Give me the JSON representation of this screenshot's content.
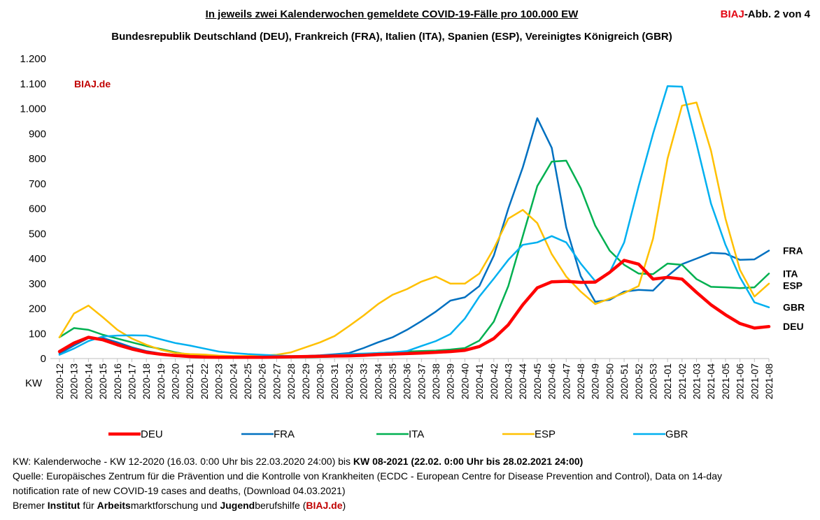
{
  "header": {
    "title": "In jeweils zwei Kalenderwochen gemeldete COVID-19-Fälle pro 100.000 EW",
    "subtitle": "Bundesrepublik Deutschland (DEU), Frankreich (FRA), Italien (ITA), Spanien (ESP), Vereinigtes Königreich (GBR)",
    "corner_brand": "BIAJ",
    "corner_rest": "-Abb. 2 von 4"
  },
  "chart_data": {
    "type": "line",
    "watermark": "BIAJ.de",
    "xlabel": "KW",
    "ylim": [
      0,
      1200
    ],
    "yticks": [
      0,
      100,
      200,
      300,
      400,
      500,
      600,
      700,
      800,
      900,
      1000,
      1100,
      1200
    ],
    "ytick_labels": [
      "0",
      "100",
      "200",
      "300",
      "400",
      "500",
      "600",
      "700",
      "800",
      "900",
      "1.000",
      "1.100",
      "1.200"
    ],
    "categories": [
      "2020-12",
      "2020-13",
      "2020-14",
      "2020-15",
      "2020-16",
      "2020-17",
      "2020-18",
      "2020-19",
      "2020-20",
      "2020-21",
      "2020-22",
      "2020-23",
      "2020-24",
      "2020-25",
      "2020-26",
      "2020-27",
      "2020-28",
      "2020-29",
      "2020-30",
      "2020-31",
      "2020-32",
      "2020-33",
      "2020-34",
      "2020-35",
      "2020-36",
      "2020-37",
      "2020-38",
      "2020-39",
      "2020-40",
      "2020-41",
      "2020-42",
      "2020-43",
      "2020-44",
      "2020-45",
      "2020-46",
      "2020-47",
      "2020-48",
      "2020-49",
      "2020-50",
      "2020-51",
      "2020-52",
      "2020-53",
      "2021-01",
      "2021-02",
      "2021-03",
      "2021-04",
      "2021-05",
      "2021-06",
      "2021-07",
      "2021-08"
    ],
    "series": [
      {
        "name": "DEU",
        "color": "#ff0000",
        "values": [
          28,
          62,
          85,
          75,
          55,
          38,
          25,
          17,
          12,
          8,
          6,
          5,
          5,
          5,
          5,
          6,
          7,
          8,
          9,
          10,
          11,
          13,
          16,
          18,
          20,
          22,
          25,
          28,
          33,
          48,
          80,
          135,
          215,
          283,
          307,
          309,
          305,
          306,
          345,
          393,
          378,
          318,
          325,
          318,
          265,
          215,
          175,
          140,
          122,
          128
        ]
      },
      {
        "name": "FRA",
        "color": "#0070c0",
        "values": [
          20,
          52,
          82,
          82,
          65,
          45,
          30,
          20,
          14,
          10,
          7,
          5,
          5,
          5,
          5,
          6,
          8,
          10,
          13,
          17,
          22,
          42,
          65,
          85,
          115,
          150,
          188,
          232,
          245,
          290,
          412,
          600,
          765,
          962,
          843,
          525,
          330,
          227,
          235,
          268,
          275,
          272,
          330,
          378,
          400,
          423,
          420,
          395,
          397,
          432
        ]
      },
      {
        "name": "ITA",
        "color": "#00b050",
        "values": [
          85,
          122,
          115,
          95,
          80,
          65,
          50,
          38,
          25,
          15,
          10,
          8,
          6,
          5,
          5,
          5,
          5,
          5,
          6,
          8,
          12,
          18,
          22,
          25,
          28,
          30,
          32,
          36,
          42,
          72,
          148,
          290,
          490,
          690,
          788,
          792,
          682,
          532,
          432,
          375,
          340,
          338,
          380,
          375,
          318,
          287,
          285,
          282,
          285,
          340
        ]
      },
      {
        "name": "ESP",
        "color": "#ffc000",
        "values": [
          85,
          180,
          212,
          165,
          115,
          80,
          55,
          35,
          22,
          18,
          16,
          12,
          10,
          10,
          12,
          15,
          25,
          45,
          65,
          90,
          130,
          172,
          218,
          255,
          278,
          308,
          328,
          300,
          300,
          340,
          440,
          560,
          595,
          542,
          418,
          328,
          268,
          218,
          240,
          262,
          290,
          480,
          800,
          1012,
          1025,
          832,
          560,
          355,
          248,
          300
        ]
      },
      {
        "name": "GBR",
        "color": "#00b0f0",
        "values": [
          15,
          40,
          70,
          88,
          92,
          93,
          92,
          77,
          62,
          52,
          40,
          28,
          22,
          18,
          15,
          12,
          10,
          10,
          12,
          14,
          18,
          20,
          22,
          25,
          30,
          50,
          70,
          98,
          160,
          248,
          320,
          395,
          455,
          465,
          490,
          465,
          380,
          310,
          345,
          465,
          690,
          900,
          1090,
          1088,
          860,
          620,
          455,
          325,
          225,
          205
        ]
      }
    ]
  },
  "footer": {
    "line1_a": "KW: Kalenderwoche - KW 12-2020 (16.03. 0:00 Uhr bis 22.03.2020 24:00) bis ",
    "line1_b": "KW 08-2021 (22.02. 0:00 Uhr bis 28.02.2021 24:00)",
    "line2": "Quelle: Europäisches Zentrum für die Prävention und die Kontrolle von Krankheiten (ECDC - European Centre for Disease Prevention and Control), Data on 14-day",
    "line3": "notification rate of new COVID-19 cases and deaths, (Download 04.03.2021)",
    "line4_1": "Bremer ",
    "line4_2": "Institut",
    "line4_3": " für ",
    "line4_4": "Arbeits",
    "line4_5": "marktforschung und ",
    "line4_6": "Jugend",
    "line4_7": "berufshilfe (",
    "line4_8": "BIAJ.de",
    "line4_9": ")"
  }
}
